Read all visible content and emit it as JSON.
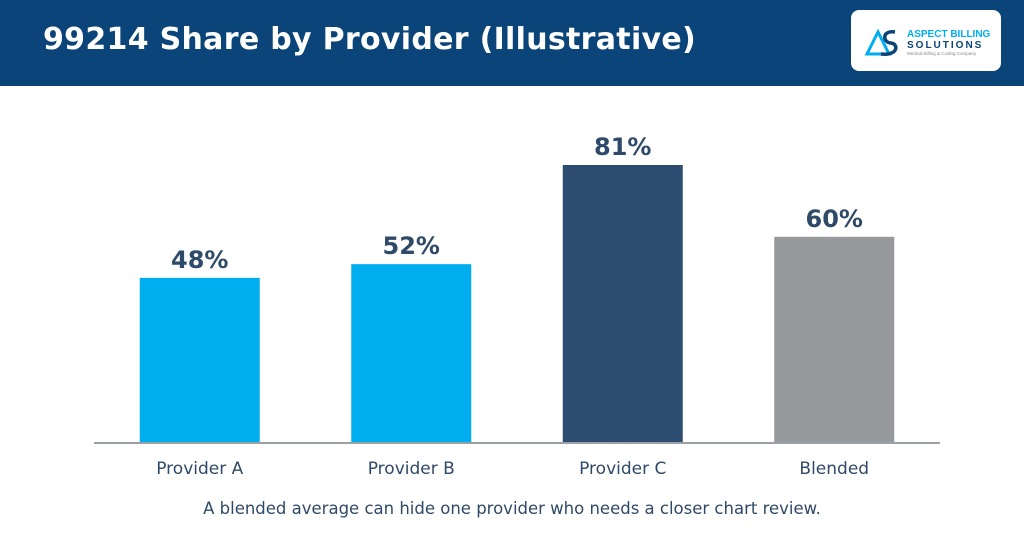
{
  "header": {
    "title": "99214 Share by Provider (Illustrative)",
    "logo": {
      "monogram": "AS",
      "line1": "ASPECT BILLING",
      "line2": "SOLUTIONS",
      "tagline": "Medical Billing & Coding Company"
    }
  },
  "chart_data": {
    "type": "bar",
    "categories": [
      "Provider A",
      "Provider B",
      "Provider C",
      "Blended"
    ],
    "values": [
      48,
      52,
      81,
      60
    ],
    "value_labels": [
      "48%",
      "52%",
      "81%",
      "60%"
    ],
    "bar_colors": [
      "#00aeef",
      "#00aeef",
      "#2d4d70",
      "#97999c"
    ],
    "ylim": [
      0,
      100
    ],
    "grid": false,
    "title": "99214 Share by Provider (Illustrative)",
    "xlabel": "",
    "ylabel": ""
  },
  "caption": "A blended average can hide one provider who needs a closer chart review.",
  "colors": {
    "header_bg": "#0a4478",
    "accent": "#00aeef",
    "dark": "#2d4d70",
    "gray": "#97999c",
    "text": "#2f4a68"
  }
}
